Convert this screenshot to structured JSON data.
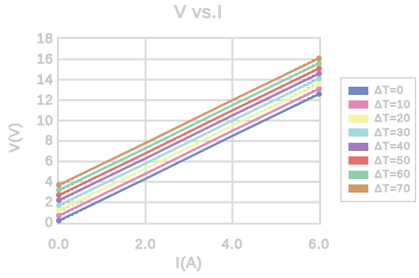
{
  "colors": {
    "grid": "#dcdcdc",
    "plot_border": "#dcdcdc",
    "legend_border": "#d4d4d4",
    "text": "#cfcfcf",
    "trendline": "#4a4a4a",
    "background": "#ffffff"
  },
  "chart_data": {
    "type": "line",
    "title": "V vs.I",
    "xlabel": "I(A)",
    "ylabel": "V(V)",
    "x": [
      0.0,
      2.0,
      4.0,
      6.0
    ],
    "xtick_labels": [
      "0.0",
      "2.0",
      "4.0",
      "6.0"
    ],
    "ylim": [
      0,
      18
    ],
    "ytick_step": 2,
    "grid": true,
    "legend_position": "right",
    "trendlines": "dotted-black-behind-each-series",
    "series": [
      {
        "name": "ΔT=0",
        "color": "#7488c5",
        "values": [
          0.2,
          4.3,
          8.5,
          12.6
        ]
      },
      {
        "name": "ΔT=10",
        "color": "#e287b7",
        "values": [
          0.7,
          4.8,
          9.0,
          13.1
        ]
      },
      {
        "name": "ΔT=20",
        "color": "#f7f3a1",
        "values": [
          1.2,
          5.3,
          9.5,
          13.6
        ]
      },
      {
        "name": "ΔT=30",
        "color": "#9fdcdb",
        "values": [
          1.7,
          5.8,
          10.0,
          14.1
        ]
      },
      {
        "name": "ΔT=40",
        "color": "#a47ac1",
        "values": [
          2.2,
          6.3,
          10.5,
          14.6
        ]
      },
      {
        "name": "ΔT=50",
        "color": "#e56f6b",
        "values": [
          2.7,
          6.8,
          11.0,
          15.1
        ]
      },
      {
        "name": "ΔT=60",
        "color": "#90cfa9",
        "values": [
          3.2,
          7.3,
          11.5,
          15.6
        ]
      },
      {
        "name": "ΔT=70",
        "color": "#d09a66",
        "values": [
          3.7,
          7.8,
          12.0,
          16.1
        ]
      }
    ]
  }
}
